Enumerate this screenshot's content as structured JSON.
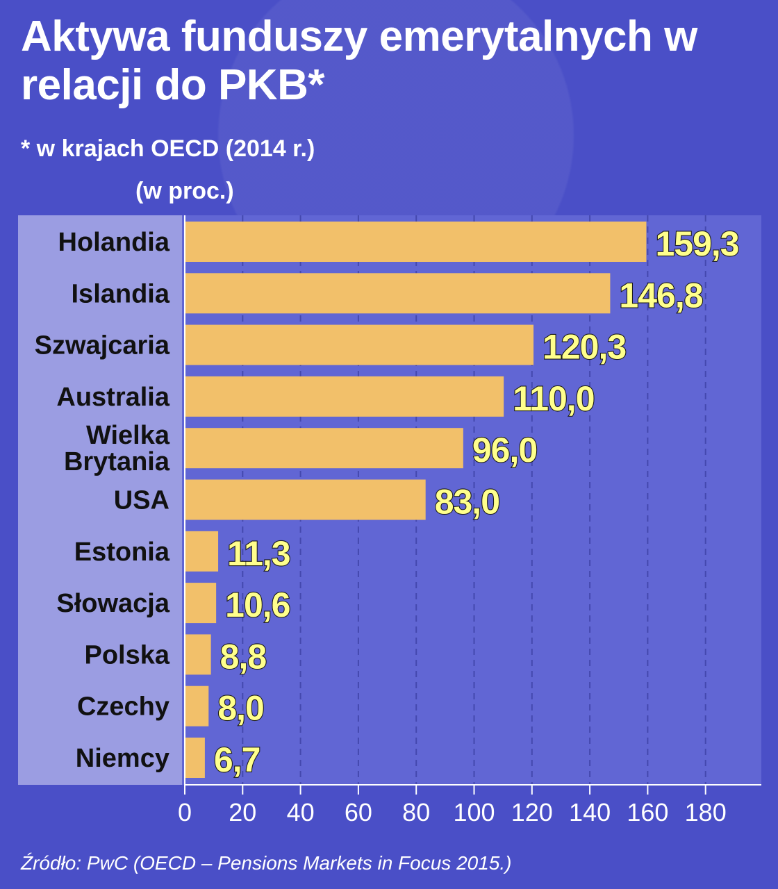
{
  "header": {
    "title": "Aktywa funduszy emerytalnych w relacji do PKB*",
    "subtitle": "* w krajach OECD (2014 r.)",
    "unit": "(w proc.)"
  },
  "footer": {
    "source": "Źródło: PwC (OECD – Pensions Markets in Focus 2015.)"
  },
  "colors": {
    "background": "#4a4fc7",
    "plot_area": "#6166d4",
    "label_panel": "#9b9de2",
    "bar": "#f2c06a",
    "value_label": "#ffff8c",
    "value_outline": "#1a1a1a",
    "axis_text": "#ffffff",
    "category_text": "#111111"
  },
  "chart_data": {
    "type": "bar",
    "orientation": "horizontal",
    "categories": [
      "Holandia",
      "Islandia",
      "Szwajcaria",
      "Australia",
      "Wielka Brytania",
      "USA",
      "Estonia",
      "Słowacja",
      "Polska",
      "Czechy",
      "Niemcy"
    ],
    "category_lines": [
      [
        "Holandia"
      ],
      [
        "Islandia"
      ],
      [
        "Szwajcaria"
      ],
      [
        "Australia"
      ],
      [
        "Wielka",
        "Brytania"
      ],
      [
        "USA"
      ],
      [
        "Estonia"
      ],
      [
        "Słowacja"
      ],
      [
        "Polska"
      ],
      [
        "Czechy"
      ],
      [
        "Niemcy"
      ]
    ],
    "values": [
      159.3,
      146.8,
      120.3,
      110.0,
      96.0,
      83.0,
      11.3,
      10.6,
      8.8,
      8.0,
      6.7
    ],
    "value_labels": [
      "159,3",
      "146,8",
      "120,3",
      "110,0",
      "96,0",
      "83,0",
      "11,3",
      "10,6",
      "8,8",
      "8,0",
      "6,7"
    ],
    "x_ticks": [
      0,
      20,
      40,
      60,
      80,
      100,
      120,
      140,
      160,
      180
    ],
    "x_tick_labels": [
      "0",
      "20",
      "40",
      "60",
      "80",
      "100",
      "120",
      "140",
      "160",
      "180"
    ],
    "xlim": [
      0,
      200
    ],
    "grid": "vertical-dashed",
    "legend": "none"
  }
}
